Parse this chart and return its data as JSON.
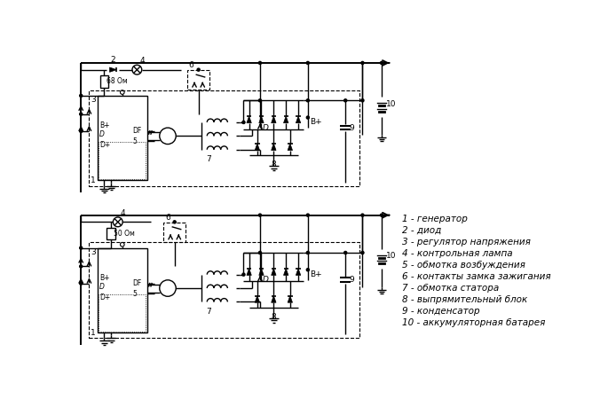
{
  "bg_color": "#ffffff",
  "legend": [
    "1 - генератор",
    "2 - диод",
    "3 - регулятор напряжения",
    "4 - контрольная лампа",
    "5 - обмотка возбуждения",
    "6 - контакты замка зажигания",
    "7 - обмотка статора",
    "8 - выпрямительный блок",
    "9 - конденсатор",
    "10 - аккумуляторная батарея"
  ],
  "resistor1_label": "68 Ом",
  "resistor2_label": "50 Ом"
}
